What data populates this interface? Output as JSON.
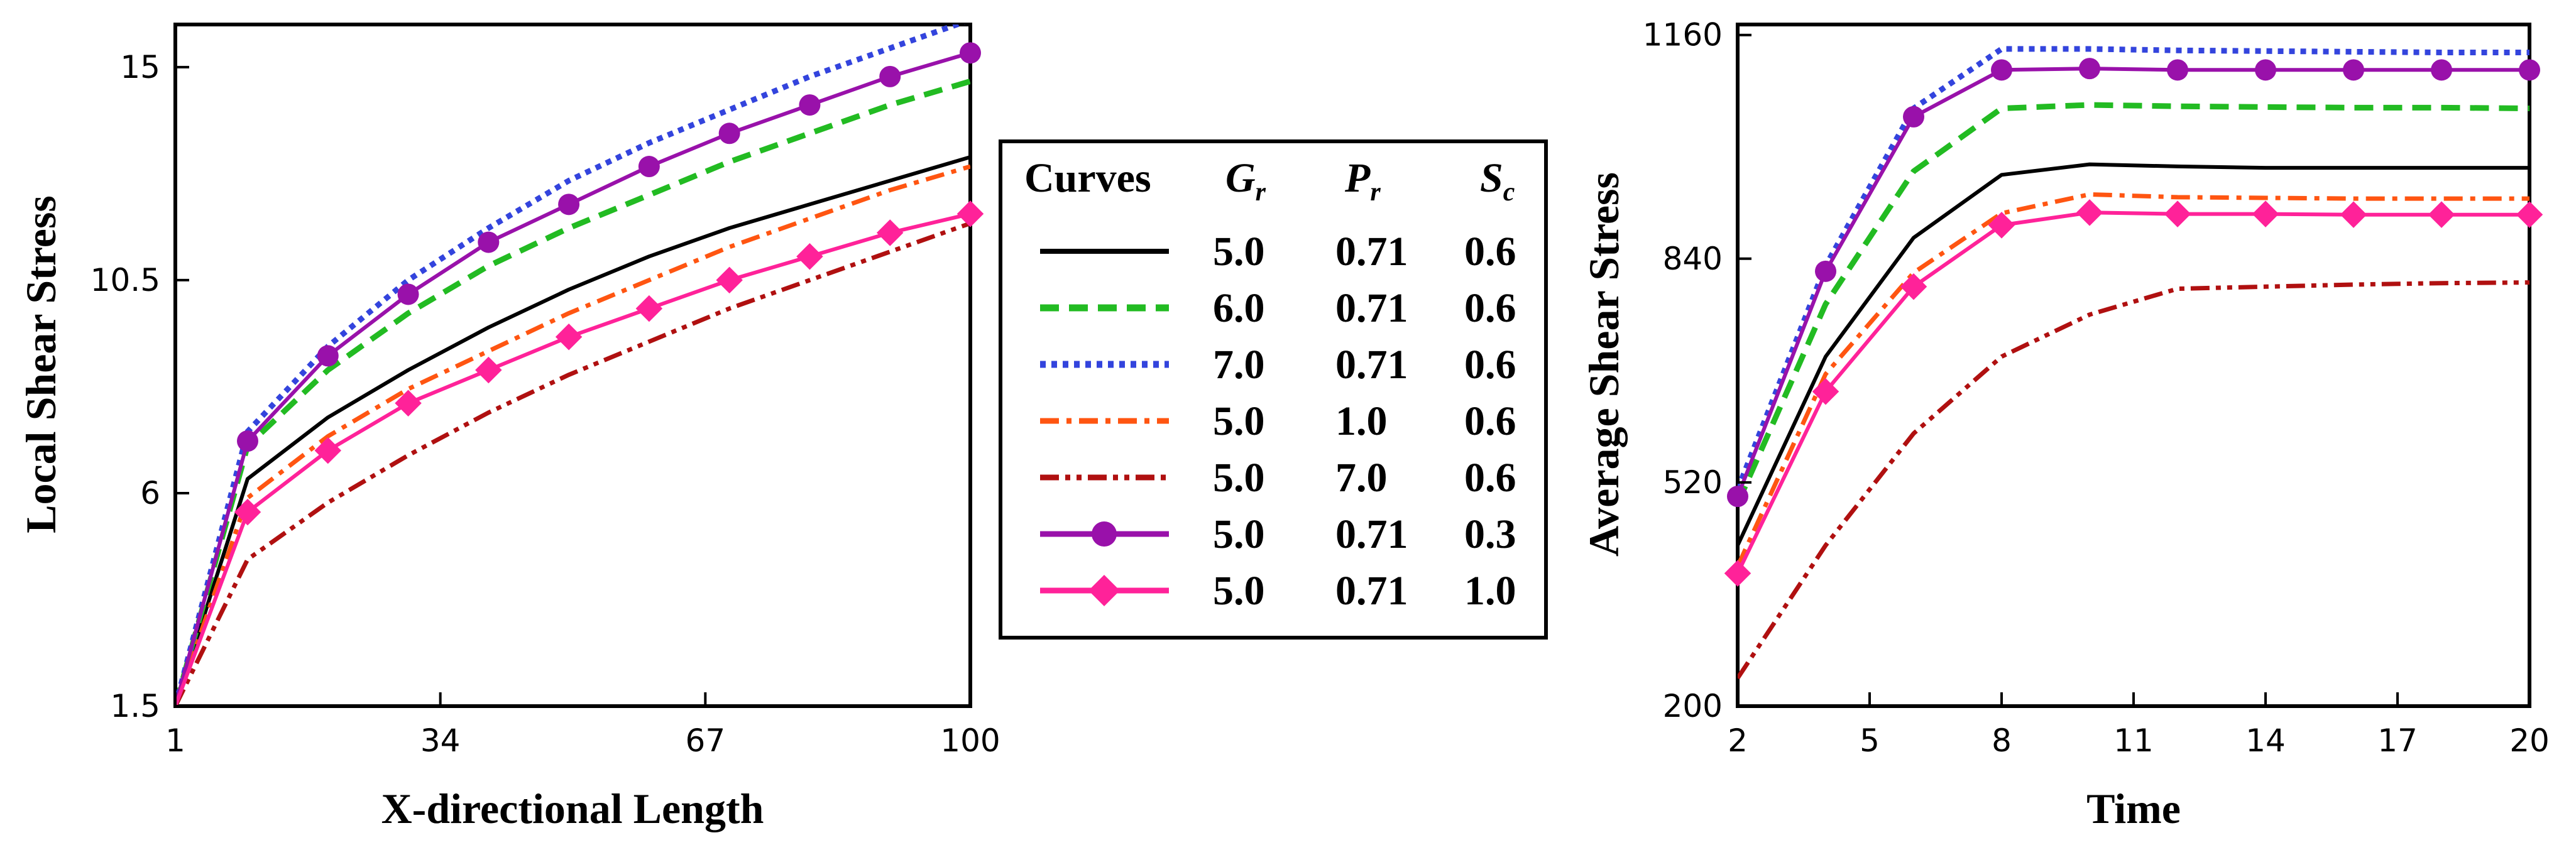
{
  "chart_data": [
    {
      "type": "line",
      "title": "",
      "xlabel": "X-directional Length",
      "ylabel": "Local Shear Stress",
      "xlim": [
        1,
        100
      ],
      "ylim": [
        1.5,
        15.9
      ],
      "xticks": [
        "1",
        "34",
        "67",
        "100"
      ],
      "yticks": [
        "1.5",
        "6",
        "10.5",
        "15"
      ],
      "xtick_values": [
        1,
        34,
        67,
        100
      ],
      "ytick_values": [
        1.5,
        6,
        10.5,
        15
      ],
      "x": [
        1,
        10,
        20,
        30,
        40,
        50,
        60,
        70,
        80,
        90,
        100
      ],
      "series": [
        {
          "name": "G_r=5.0, P_r=0.71, S_c=0.6",
          "values": [
            1.5,
            6.3,
            7.6,
            8.6,
            9.5,
            10.3,
            11.0,
            11.6,
            12.1,
            12.6,
            13.1
          ]
        },
        {
          "name": "G_r=6.0, P_r=0.71, S_c=0.6",
          "values": [
            1.5,
            7.0,
            8.6,
            9.8,
            10.8,
            11.6,
            12.3,
            13.0,
            13.6,
            14.2,
            14.7
          ]
        },
        {
          "name": "G_r=7.0, P_r=0.71, S_c=0.6",
          "values": [
            1.5,
            7.3,
            9.1,
            10.5,
            11.6,
            12.6,
            13.4,
            14.1,
            14.8,
            15.4,
            16.0
          ]
        },
        {
          "name": "G_r=5.0, P_r=1.0, S_c=0.6",
          "values": [
            1.5,
            5.9,
            7.2,
            8.2,
            9.0,
            9.8,
            10.5,
            11.2,
            11.8,
            12.4,
            12.9
          ]
        },
        {
          "name": "G_r=5.0, P_r=7.0, S_c=0.6",
          "values": [
            1.5,
            4.6,
            5.8,
            6.8,
            7.7,
            8.5,
            9.2,
            9.9,
            10.5,
            11.1,
            11.7
          ]
        },
        {
          "name": "G_r=5.0, P_r=0.71, S_c=0.3",
          "values": [
            1.5,
            7.1,
            8.9,
            10.2,
            11.3,
            12.1,
            12.9,
            13.6,
            14.2,
            14.8,
            15.3
          ]
        },
        {
          "name": "G_r=5.0, P_r=0.71, S_c=1.0",
          "values": [
            1.5,
            5.6,
            6.9,
            7.9,
            8.6,
            9.3,
            9.9,
            10.5,
            11.0,
            11.5,
            11.9
          ]
        }
      ]
    },
    {
      "type": "line",
      "title": "",
      "xlabel": "Time",
      "ylabel": "Average Shear Stress",
      "xlim": [
        2,
        20
      ],
      "ylim": [
        200,
        1175
      ],
      "xticks": [
        "2",
        "5",
        "8",
        "11",
        "14",
        "17",
        "20"
      ],
      "yticks": [
        "200",
        "520",
        "840",
        "1160"
      ],
      "xtick_values": [
        2,
        5,
        8,
        11,
        14,
        17,
        20
      ],
      "ytick_values": [
        200,
        520,
        840,
        1160
      ],
      "x": [
        2,
        4,
        6,
        8,
        10,
        12,
        14,
        16,
        18,
        20
      ],
      "series": [
        {
          "name": "G_r=5.0, P_r=0.71, S_c=0.6",
          "values": [
            430,
            700,
            870,
            960,
            975,
            972,
            970,
            970,
            970,
            970
          ]
        },
        {
          "name": "G_r=6.0, P_r=0.71, S_c=0.6",
          "values": [
            490,
            775,
            965,
            1055,
            1060,
            1058,
            1057,
            1056,
            1056,
            1055
          ]
        },
        {
          "name": "G_r=7.0, P_r=0.71, S_c=0.6",
          "values": [
            510,
            830,
            1055,
            1140,
            1140,
            1138,
            1137,
            1136,
            1135,
            1135
          ]
        },
        {
          "name": "G_r=5.0, P_r=1.0, S_c=0.6",
          "values": [
            400,
            675,
            820,
            905,
            932,
            928,
            927,
            926,
            926,
            926
          ]
        },
        {
          "name": "G_r=5.0, P_r=7.0, S_c=0.6",
          "values": [
            240,
            430,
            590,
            700,
            760,
            797,
            800,
            803,
            805,
            806
          ]
        },
        {
          "name": "G_r=5.0, P_r=0.71, S_c=0.3",
          "values": [
            500,
            822,
            1043,
            1110,
            1112,
            1110,
            1110,
            1110,
            1110,
            1110
          ]
        },
        {
          "name": "G_r=5.0, P_r=0.71, S_c=1.0",
          "values": [
            390,
            650,
            800,
            888,
            906,
            904,
            904,
            903,
            903,
            903
          ]
        }
      ]
    }
  ],
  "legend": {
    "headers": {
      "curves": "Curves",
      "gr": "G",
      "gr_sub": "r",
      "pr": "P",
      "pr_sub": "r",
      "sc": "S",
      "sc_sub": "c"
    },
    "rows": [
      {
        "gr": "5.0",
        "pr": "0.71",
        "sc": "0.6"
      },
      {
        "gr": "6.0",
        "pr": "0.71",
        "sc": "0.6"
      },
      {
        "gr": "7.0",
        "pr": "0.71",
        "sc": "0.6"
      },
      {
        "gr": "5.0",
        "pr": "1.0",
        "sc": "0.6"
      },
      {
        "gr": "5.0",
        "pr": "7.0",
        "sc": "0.6"
      },
      {
        "gr": "5.0",
        "pr": "0.71",
        "sc": "0.3"
      },
      {
        "gr": "5.0",
        "pr": "0.71",
        "sc": "1.0"
      }
    ]
  },
  "series_styles": [
    {
      "color": "#000000",
      "dash": "solid",
      "marker": "none"
    },
    {
      "color": "#22bb22",
      "dash": "dashed",
      "marker": "none"
    },
    {
      "color": "#3344dd",
      "dash": "dotted",
      "marker": "none"
    },
    {
      "color": "#ff5511",
      "dash": "dashdot",
      "marker": "none"
    },
    {
      "color": "#b01010",
      "dash": "dashdotdot",
      "marker": "none"
    },
    {
      "color": "#9911aa",
      "dash": "solid",
      "marker": "circle"
    },
    {
      "color": "#ff2299",
      "dash": "solid",
      "marker": "diamond"
    }
  ]
}
